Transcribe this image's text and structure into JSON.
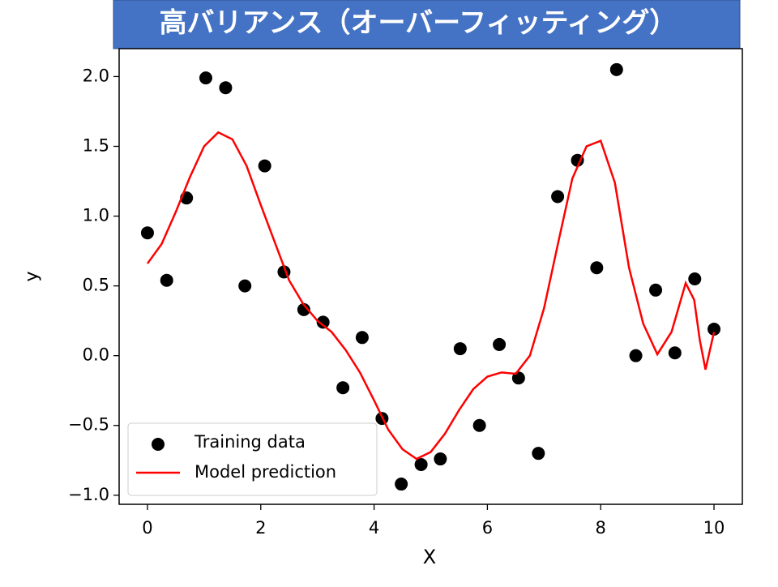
{
  "chart_data": {
    "type": "combo",
    "title": "高バリアンス（オーバーフィッティング）",
    "x_label": "X",
    "y_label": "y",
    "xlim": [
      -0.5,
      10.5
    ],
    "ylim": [
      -1.065,
      2.2
    ],
    "xticks": [
      0,
      2,
      4,
      6,
      8,
      10
    ],
    "yticks": [
      {
        "value": -1,
        "label": "−1.0"
      },
      {
        "value": -0.5,
        "label": "−0.5"
      },
      {
        "value": 0,
        "label": "0.0"
      },
      {
        "value": 0.5,
        "label": "0.5"
      },
      {
        "value": 1,
        "label": "1.0"
      },
      {
        "value": 1.5,
        "label": "1.5"
      },
      {
        "value": 2,
        "label": "2.0"
      }
    ],
    "legend": "lower left",
    "series": [
      {
        "name": "Training data",
        "type": "scatter",
        "color": "#000000",
        "x": [
          0,
          0.34,
          0.69,
          1.03,
          1.38,
          1.72,
          2.07,
          2.41,
          2.76,
          3.1,
          3.45,
          3.79,
          4.14,
          4.48,
          4.83,
          5.17,
          5.52,
          5.86,
          6.21,
          6.55,
          6.9,
          7.24,
          7.59,
          7.93,
          8.28,
          8.62,
          8.97,
          9.31,
          9.66,
          10
        ],
        "values": [
          0.88,
          0.54,
          1.13,
          1.99,
          1.92,
          0.5,
          1.36,
          0.6,
          0.33,
          0.24,
          -0.23,
          0.13,
          -0.45,
          -0.92,
          -0.78,
          -0.74,
          0.05,
          -0.5,
          0.08,
          -0.16,
          -0.7,
          1.14,
          1.4,
          0.63,
          2.05,
          0,
          0.47,
          0.02,
          0.55,
          0.19
        ]
      },
      {
        "name": "Model prediction",
        "type": "line",
        "color": "#ff0000",
        "x": [
          0,
          0.25,
          0.5,
          0.75,
          1,
          1.25,
          1.5,
          1.75,
          2,
          2.25,
          2.5,
          2.75,
          3,
          3.25,
          3.5,
          3.75,
          4,
          4.25,
          4.5,
          4.75,
          5,
          5.25,
          5.5,
          5.75,
          6,
          6.25,
          6.5,
          6.75,
          7,
          7.25,
          7.5,
          7.75,
          8,
          8.25,
          8.5,
          8.75,
          9,
          9.25,
          9.5,
          9.65,
          9.75,
          9.85,
          10
        ],
        "values": [
          0.66,
          0.8,
          1.03,
          1.28,
          1.5,
          1.6,
          1.55,
          1.36,
          1.08,
          0.81,
          0.54,
          0.37,
          0.25,
          0.17,
          0.04,
          -0.12,
          -0.32,
          -0.53,
          -0.67,
          -0.74,
          -0.69,
          -0.56,
          -0.39,
          -0.24,
          -0.15,
          -0.12,
          -0.13,
          0,
          0.34,
          0.81,
          1.27,
          1.5,
          1.54,
          1.24,
          0.63,
          0.23,
          0.01,
          0.17,
          0.52,
          0.4,
          0.11,
          -0.1,
          0.17
        ]
      }
    ]
  }
}
